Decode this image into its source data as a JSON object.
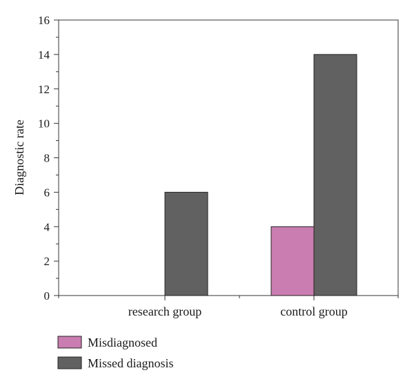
{
  "chart_data": {
    "type": "bar",
    "categories": [
      "research group",
      "control group"
    ],
    "series": [
      {
        "name": "Misdiagnosed",
        "values": [
          0,
          4
        ],
        "color": "#c97db0"
      },
      {
        "name": "Missed diagnosis",
        "values": [
          6,
          14
        ],
        "color": "#616161"
      }
    ],
    "title": "",
    "xlabel": "",
    "ylabel": "Diagnostic rate",
    "ylim": [
      0,
      16
    ],
    "yticks": [
      0,
      2,
      4,
      6,
      8,
      10,
      12,
      14,
      16
    ],
    "grid": false,
    "legend_position": "bottom-left"
  }
}
